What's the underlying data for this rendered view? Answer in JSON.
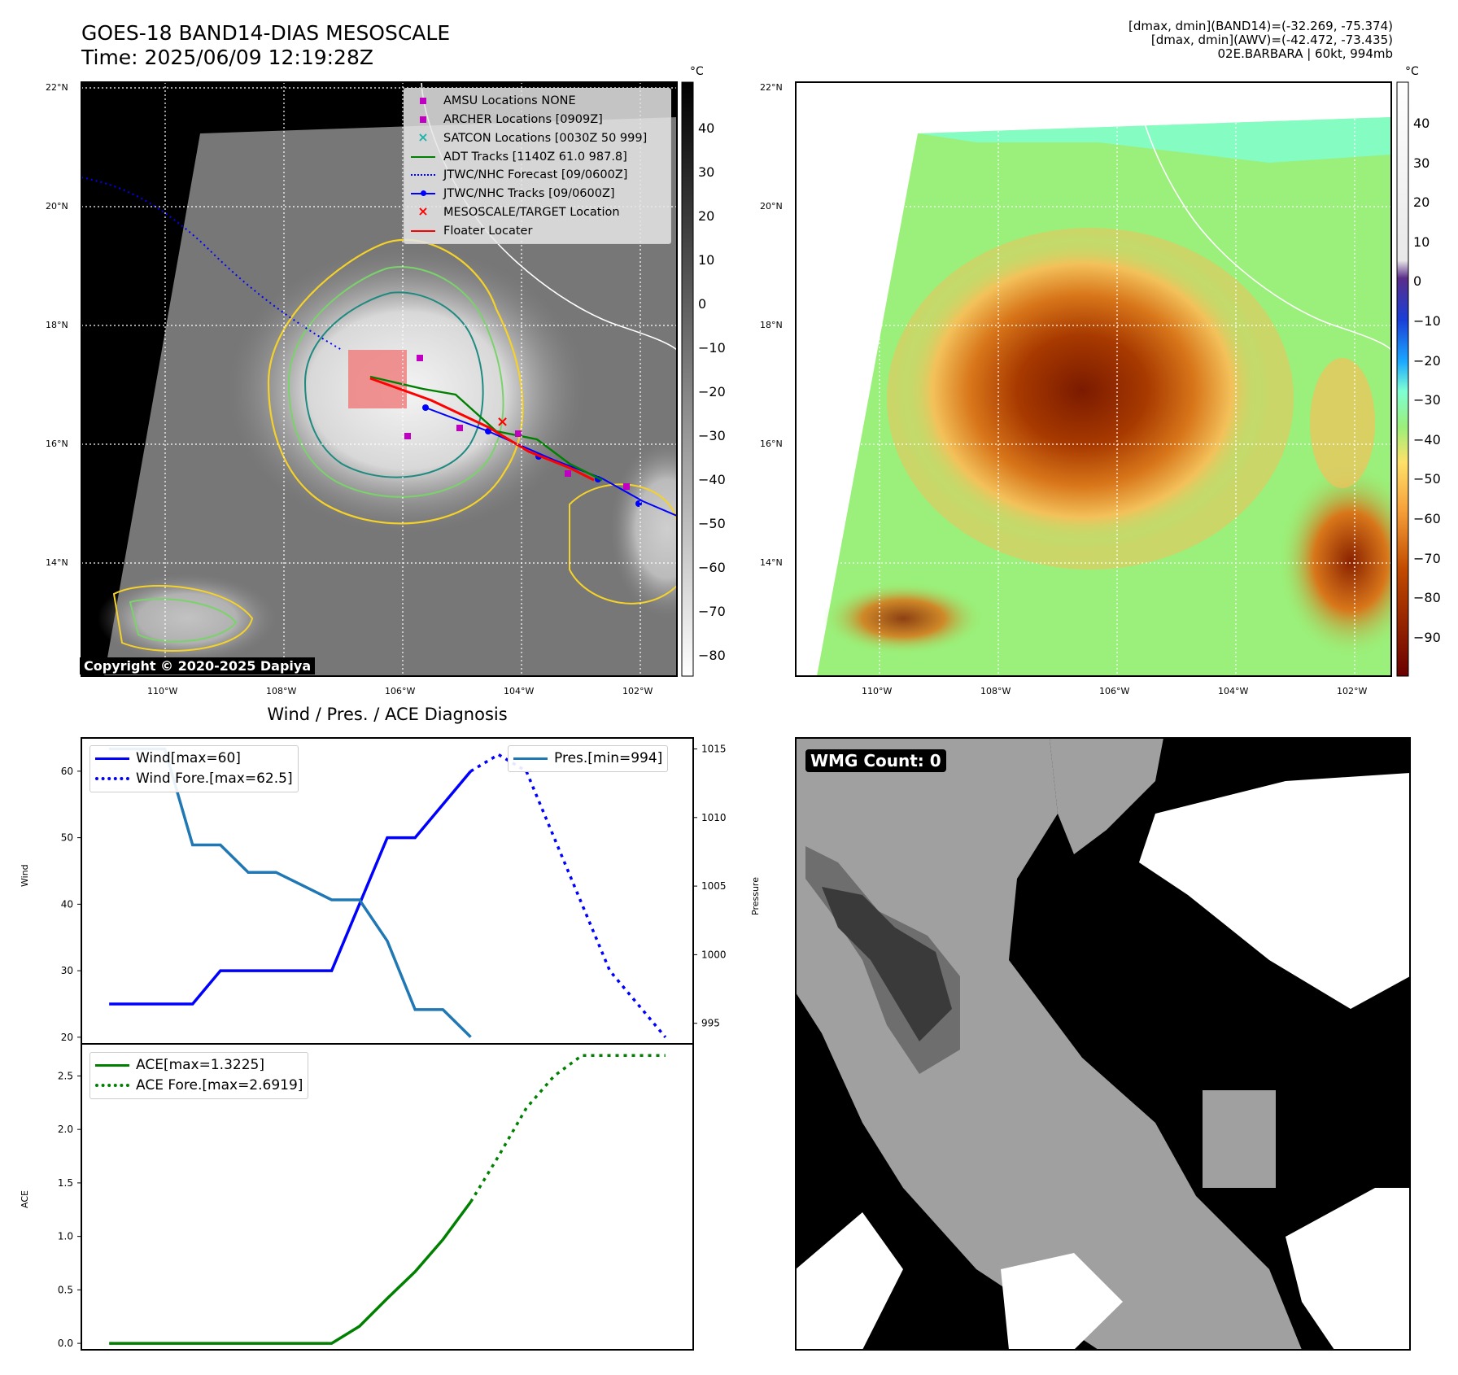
{
  "header": {
    "title_line1": "GOES-18 BAND14-DIAS MESOSCALE",
    "title_line2": "Time: 2025/06/09 12:19:28Z",
    "meta_line1": "[dmax, dmin](BAND14)=(-32.269, -75.374)",
    "meta_line2": "[dmax, dmin](AWV)=(-42.472, -73.435)",
    "meta_line3": "02E.BARBARA | 60kt, 994mb"
  },
  "map_axes": {
    "lat_labels": [
      "22°N",
      "20°N",
      "18°N",
      "16°N",
      "14°N"
    ],
    "lon_labels": [
      "110°W",
      "108°W",
      "106°W",
      "104°W",
      "102°W"
    ],
    "copyright": "Copyright © 2020-2025 Dapiya"
  },
  "legend_map": {
    "items": [
      {
        "label": "AMSU Locations NONE",
        "color": "#c000c0",
        "symbol": "square"
      },
      {
        "label": "ARCHER Locations [0909Z]",
        "color": "#c000c0",
        "symbol": "square"
      },
      {
        "label": "SATCON Locations [0030Z 50 999]",
        "color": "#20b2aa",
        "symbol": "x"
      },
      {
        "label": "ADT Tracks [1140Z 61.0 987.8]",
        "color": "#008000",
        "symbol": "line"
      },
      {
        "label": "JTWC/NHC Forecast [09/0600Z]",
        "color": "#0000ff",
        "symbol": "dotted"
      },
      {
        "label": "JTWC/NHC Tracks [09/0600Z]",
        "color": "#0000ff",
        "symbol": "line-dot"
      },
      {
        "label": "MESOSCALE/TARGET Location",
        "color": "#ff0000",
        "symbol": "x"
      },
      {
        "label": "Floater Locater",
        "color": "#ff0000",
        "symbol": "line"
      }
    ]
  },
  "colorbar_gray": {
    "unit": "°C",
    "ticks": [
      "40",
      "30",
      "20",
      "10",
      "0",
      "−10",
      "−20",
      "−30",
      "−40",
      "−50",
      "−60",
      "−70",
      "−80"
    ]
  },
  "colorbar_color": {
    "unit": "°C",
    "ticks": [
      "40",
      "30",
      "20",
      "10",
      "0",
      "−10",
      "−20",
      "−30",
      "−40",
      "−50",
      "−60",
      "−70",
      "−80",
      "−90"
    ]
  },
  "diag_panel": {
    "title": "Wind / Pres. / ACE Diagnosis",
    "wind_ylabel": "Wind",
    "pres_ylabel": "Pressure",
    "ace_ylabel": "ACE",
    "wind_legend": [
      "Wind[max=60]",
      "Wind Fore.[max=62.5]"
    ],
    "pres_legend": [
      "Pres.[min=994]"
    ],
    "ace_legend": [
      "ACE[max=1.3225]",
      "ACE Fore.[max=2.6919]"
    ]
  },
  "wmg_panel": {
    "label": "WMG Count: 0"
  },
  "chart_data": [
    {
      "type": "line",
      "title": "Wind / Pres. / ACE Diagnosis",
      "ylabel": "Wind",
      "ylim": [
        19,
        65
      ],
      "y_ticks": [
        20,
        30,
        40,
        50,
        60
      ],
      "series": [
        {
          "name": "Wind[max=60]",
          "color": "#0000ff",
          "style": "solid",
          "x": [
            0,
            1,
            2,
            3,
            4,
            5,
            6,
            7,
            8,
            9,
            10,
            11,
            12,
            13
          ],
          "values": [
            25,
            25,
            25,
            25,
            30,
            30,
            30,
            30,
            30,
            40,
            50,
            50,
            55,
            60
          ]
        },
        {
          "name": "Wind Fore.[max=62.5]",
          "color": "#0000ff",
          "style": "dotted",
          "x": [
            13,
            14,
            15,
            16,
            17,
            18,
            19,
            20
          ],
          "values": [
            60,
            62.5,
            60,
            50,
            40,
            30,
            25,
            20
          ]
        }
      ]
    },
    {
      "type": "line",
      "ylabel": "Pressure",
      "ylim": [
        993.5,
        1015.8
      ],
      "y_ticks": [
        995,
        1000,
        1005,
        1010,
        1015
      ],
      "series": [
        {
          "name": "Pres.[min=994]",
          "color": "#1f77b4",
          "style": "solid",
          "x": [
            0,
            1,
            2,
            3,
            4,
            5,
            6,
            7,
            8,
            9,
            10,
            11,
            12,
            13
          ],
          "values": [
            1015,
            1015,
            1015,
            1008,
            1008,
            1006,
            1006,
            1005,
            1004,
            1004,
            1001,
            996,
            996,
            994
          ]
        }
      ]
    },
    {
      "type": "line",
      "ylabel": "ACE",
      "ylim": [
        -0.06,
        2.8
      ],
      "y_ticks": [
        0.0,
        0.5,
        1.0,
        1.5,
        2.0,
        2.5
      ],
      "series": [
        {
          "name": "ACE[max=1.3225]",
          "color": "#008000",
          "style": "solid",
          "x": [
            0,
            1,
            2,
            3,
            4,
            5,
            6,
            7,
            8,
            9,
            10,
            11,
            12,
            13
          ],
          "values": [
            0,
            0,
            0,
            0,
            0,
            0,
            0,
            0,
            0,
            0.16,
            0.42,
            0.67,
            0.97,
            1.3225
          ]
        },
        {
          "name": "ACE Fore.[max=2.6919]",
          "color": "#008000",
          "style": "dotted",
          "x": [
            13,
            14,
            15,
            16,
            17,
            18,
            19,
            20
          ],
          "values": [
            1.3225,
            1.75,
            2.2,
            2.5,
            2.6919,
            2.6919,
            2.6919,
            2.6919
          ]
        }
      ]
    }
  ]
}
